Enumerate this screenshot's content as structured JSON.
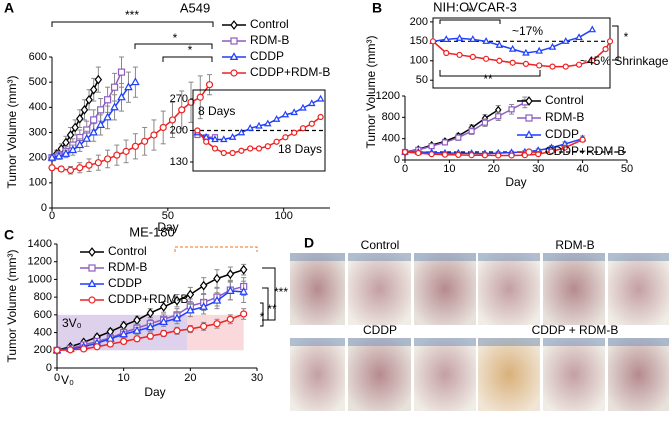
{
  "panel_labels": [
    "A",
    "B",
    "C",
    "D"
  ],
  "chart_data": [
    {
      "type": "line",
      "title": "A549",
      "xlabel": "Day",
      "ylabel": "Tumor Volume (mm³)",
      "xlim": [
        0,
        120
      ],
      "ylim": [
        0,
        600
      ],
      "xticks": [
        0,
        50,
        100
      ],
      "yticks": [
        0,
        100,
        200,
        300,
        400,
        500,
        600
      ],
      "legend": "upper right",
      "series": [
        {
          "name": "Control",
          "color": "#000000",
          "marker": "diamond",
          "x": [
            0,
            2,
            4,
            6,
            8,
            10,
            12,
            14,
            16,
            18,
            20
          ],
          "values": [
            200,
            215,
            235,
            260,
            290,
            320,
            355,
            390,
            430,
            470,
            510
          ],
          "errors": [
            10,
            15,
            20,
            25,
            30,
            30,
            35,
            40,
            40,
            45,
            50
          ]
        },
        {
          "name": "RDM-B",
          "color": "#8e5cc2",
          "marker": "square",
          "x": [
            0,
            3,
            6,
            9,
            12,
            15,
            18,
            21,
            24,
            27,
            30
          ],
          "values": [
            200,
            210,
            225,
            250,
            280,
            310,
            350,
            390,
            430,
            480,
            540
          ],
          "errors": [
            10,
            15,
            20,
            25,
            30,
            35,
            40,
            45,
            50,
            55,
            60
          ]
        },
        {
          "name": "CDDP",
          "color": "#1f3fff",
          "marker": "triangle",
          "x": [
            0,
            3,
            6,
            9,
            12,
            15,
            18,
            21,
            24,
            27,
            30,
            33,
            36
          ],
          "values": [
            200,
            205,
            215,
            230,
            250,
            275,
            300,
            330,
            360,
            400,
            440,
            480,
            500
          ],
          "errors": [
            10,
            12,
            15,
            20,
            25,
            30,
            35,
            40,
            45,
            50,
            55,
            60,
            60
          ]
        },
        {
          "name": "CDDP+RDM-B",
          "color": "#ee2222",
          "marker": "circle",
          "x": [
            0,
            4,
            8,
            12,
            16,
            20,
            24,
            28,
            32,
            36,
            40,
            44,
            48,
            52,
            56,
            60,
            64,
            68
          ],
          "values": [
            160,
            155,
            150,
            160,
            170,
            180,
            195,
            210,
            225,
            245,
            265,
            290,
            320,
            350,
            390,
            420,
            440,
            490
          ],
          "errors": [
            10,
            10,
            15,
            20,
            25,
            30,
            35,
            40,
            45,
            50,
            55,
            60,
            65,
            70,
            75,
            80,
            85,
            40
          ]
        }
      ],
      "annotations": [
        {
          "text": "***",
          "color": "#000000"
        },
        {
          "text": "*",
          "color": "#000000"
        },
        {
          "text": "*",
          "color": "#000000"
        }
      ]
    },
    {
      "type": "line",
      "xlim": [
        60,
        120
      ],
      "ylim": [
        110,
        290
      ],
      "yticks": [
        130,
        200,
        270
      ],
      "ref_line": 200,
      "series": [
        {
          "name": "RDM-B",
          "color": "#8e5cc2",
          "marker": "square",
          "x": [
            62,
            66,
            70
          ],
          "values": [
            190,
            185,
            185
          ]
        },
        {
          "name": "CDDP",
          "color": "#1f3fff",
          "marker": "triangle",
          "x": [
            62,
            66,
            70,
            74,
            78,
            82,
            86,
            90,
            94,
            98,
            102,
            106,
            110,
            114,
            118
          ],
          "values": [
            195,
            185,
            180,
            180,
            185,
            195,
            205,
            210,
            215,
            225,
            235,
            240,
            250,
            260,
            270
          ]
        },
        {
          "name": "CDDP+RDM-B",
          "color": "#ee2222",
          "marker": "circle",
          "x": [
            62,
            66,
            70,
            74,
            78,
            82,
            86,
            90,
            94,
            98,
            102,
            106,
            110,
            114,
            118
          ],
          "values": [
            200,
            175,
            160,
            150,
            150,
            155,
            160,
            160,
            165,
            175,
            185,
            195,
            205,
            215,
            230
          ]
        }
      ],
      "annotations": [
        {
          "text": "8 Days",
          "color": "#1f3fff"
        },
        {
          "text": "18 Days",
          "color": "#ee2222"
        }
      ]
    },
    {
      "type": "line",
      "title": "NIH:OVCAR-3",
      "xlim": [
        0,
        40
      ],
      "ylim": [
        30,
        210
      ],
      "yticks": [
        50,
        100,
        150,
        200
      ],
      "ref_line": 150,
      "series": [
        {
          "name": "CDDP",
          "color": "#1f3fff",
          "marker": "triangle",
          "x": [
            0,
            3,
            6,
            9,
            12,
            15,
            18,
            21,
            24,
            27,
            30,
            33,
            36
          ],
          "values": [
            150,
            155,
            158,
            155,
            150,
            140,
            130,
            120,
            125,
            135,
            150,
            160,
            180
          ]
        },
        {
          "name": "CDDP+RDM-B",
          "color": "#ee2222",
          "marker": "circle",
          "x": [
            0,
            3,
            6,
            9,
            12,
            15,
            18,
            21,
            24,
            27,
            30,
            33,
            36,
            39,
            40
          ],
          "values": [
            150,
            120,
            115,
            110,
            105,
            100,
            95,
            92,
            88,
            85,
            85,
            90,
            100,
            130,
            150
          ]
        }
      ],
      "annotations": [
        {
          "text": "~17%",
          "color": "#1f3fff"
        },
        {
          "text": "~45% Shrinkage",
          "color": "#ee2222"
        },
        {
          "text": "*",
          "color": "#000000"
        },
        {
          "text": "**",
          "color": "#000000"
        },
        {
          "text": "*",
          "color": "#000000"
        }
      ]
    },
    {
      "type": "line",
      "xlabel": "Day",
      "ylabel": "Tumor Volume (mm³)",
      "xlim": [
        0,
        50
      ],
      "ylim": [
        0,
        1200
      ],
      "xticks": [
        0,
        10,
        20,
        30,
        40,
        50
      ],
      "yticks": [
        0,
        400,
        800,
        1200
      ],
      "ref_line": 150,
      "legend": "upper right",
      "series": [
        {
          "name": "Control",
          "color": "#000000",
          "marker": "diamond",
          "x": [
            0,
            3,
            6,
            9,
            12,
            15,
            18,
            21
          ],
          "values": [
            150,
            200,
            280,
            350,
            450,
            600,
            780,
            940
          ],
          "errors": [
            10,
            20,
            30,
            40,
            50,
            60,
            70,
            80
          ]
        },
        {
          "name": "RDM-B",
          "color": "#8e5cc2",
          "marker": "square",
          "x": [
            0,
            3,
            6,
            9,
            12,
            15,
            18,
            21,
            24,
            27
          ],
          "values": [
            150,
            190,
            260,
            330,
            420,
            540,
            700,
            820,
            950,
            1080
          ],
          "errors": [
            10,
            20,
            30,
            40,
            50,
            60,
            70,
            80,
            90,
            100
          ]
        },
        {
          "name": "CDDP",
          "color": "#1f3fff",
          "marker": "triangle",
          "x": [
            0,
            3,
            6,
            9,
            12,
            15,
            18,
            21,
            24,
            27,
            30,
            33,
            36,
            40
          ],
          "values": [
            150,
            150,
            140,
            130,
            130,
            125,
            120,
            130,
            140,
            150,
            180,
            230,
            300,
            400
          ],
          "errors": [
            10,
            10,
            15,
            15,
            20,
            20,
            20,
            25,
            25,
            30,
            30,
            40,
            40,
            50
          ]
        },
        {
          "name": "CDDP+RDM-B",
          "color": "#ee2222",
          "marker": "circle",
          "x": [
            0,
            3,
            6,
            9,
            12,
            15,
            18,
            21,
            24,
            27,
            30,
            33,
            36,
            40
          ],
          "values": [
            150,
            130,
            110,
            100,
            95,
            90,
            88,
            85,
            85,
            90,
            110,
            160,
            230,
            380
          ],
          "errors": [
            10,
            10,
            10,
            10,
            10,
            10,
            10,
            10,
            10,
            15,
            20,
            25,
            30,
            40
          ]
        }
      ]
    },
    {
      "type": "line",
      "title": "ME-180",
      "xlabel": "Day",
      "ylabel": "Tumor Volume (mm³)",
      "xlim": [
        0,
        30
      ],
      "ylim": [
        0,
        1400
      ],
      "xticks": [
        0,
        10,
        20,
        30
      ],
      "yticks": [
        0,
        200,
        400,
        600,
        800,
        1000,
        1200,
        1400
      ],
      "legend": "upper left",
      "regions": [
        {
          "x": [
            0,
            19.5
          ],
          "y": [
            200,
            600
          ],
          "color": "#d6c6e6"
        },
        {
          "x": [
            19.5,
            28
          ],
          "y": [
            200,
            600
          ],
          "color": "#f9d0d4"
        }
      ],
      "series": [
        {
          "name": "Control",
          "color": "#000000",
          "marker": "diamond",
          "x": [
            0,
            2,
            4,
            6,
            8,
            10,
            12,
            14,
            16,
            18,
            20,
            22,
            24,
            26,
            28
          ],
          "values": [
            200,
            240,
            290,
            350,
            410,
            480,
            540,
            620,
            690,
            760,
            830,
            930,
            1010,
            1060,
            1110
          ],
          "errors": [
            10,
            20,
            25,
            30,
            35,
            40,
            45,
            50,
            60,
            70,
            80,
            90,
            100,
            80,
            60
          ]
        },
        {
          "name": "RDM-B",
          "color": "#8e5cc2",
          "marker": "square",
          "x": [
            0,
            2,
            4,
            6,
            8,
            10,
            12,
            14,
            16,
            18,
            20,
            22,
            24,
            26,
            28
          ],
          "values": [
            200,
            220,
            260,
            300,
            340,
            400,
            450,
            500,
            550,
            600,
            700,
            740,
            800,
            880,
            920
          ],
          "errors": [
            10,
            20,
            25,
            30,
            35,
            40,
            45,
            50,
            60,
            70,
            80,
            90,
            100,
            110,
            100
          ]
        },
        {
          "name": "CDDP",
          "color": "#1f3fff",
          "marker": "triangle",
          "x": [
            0,
            2,
            4,
            6,
            8,
            10,
            12,
            14,
            16,
            18,
            20,
            22,
            24,
            26,
            28
          ],
          "values": [
            200,
            215,
            240,
            280,
            330,
            380,
            420,
            460,
            520,
            560,
            650,
            690,
            760,
            870,
            860
          ],
          "errors": [
            10,
            15,
            20,
            25,
            30,
            35,
            40,
            45,
            50,
            60,
            70,
            80,
            90,
            100,
            120
          ]
        },
        {
          "name": "CDDP+RDM-B",
          "color": "#ee2222",
          "marker": "circle",
          "x": [
            0,
            2,
            4,
            6,
            8,
            10,
            12,
            14,
            16,
            18,
            20,
            22,
            24,
            26,
            28
          ],
          "values": [
            200,
            205,
            215,
            240,
            270,
            300,
            330,
            360,
            390,
            420,
            440,
            470,
            500,
            550,
            610
          ],
          "errors": [
            10,
            15,
            20,
            20,
            25,
            30,
            30,
            35,
            35,
            40,
            40,
            45,
            50,
            50,
            60
          ]
        }
      ],
      "annotations": [
        {
          "text": "3V₀",
          "color": "#000000"
        },
        {
          "text": "V₀",
          "color": "#000000"
        },
        {
          "text": "***",
          "color": "#000000"
        },
        {
          "text": "**",
          "color": "#000000"
        },
        {
          "text": "*",
          "color": "#000000"
        }
      ]
    }
  ],
  "photo_panel": {
    "groups": [
      {
        "label": "Control"
      },
      {
        "label": "RDM-B"
      },
      {
        "label": "CDDP"
      },
      {
        "label": "CDDP + RDM-B"
      }
    ]
  }
}
